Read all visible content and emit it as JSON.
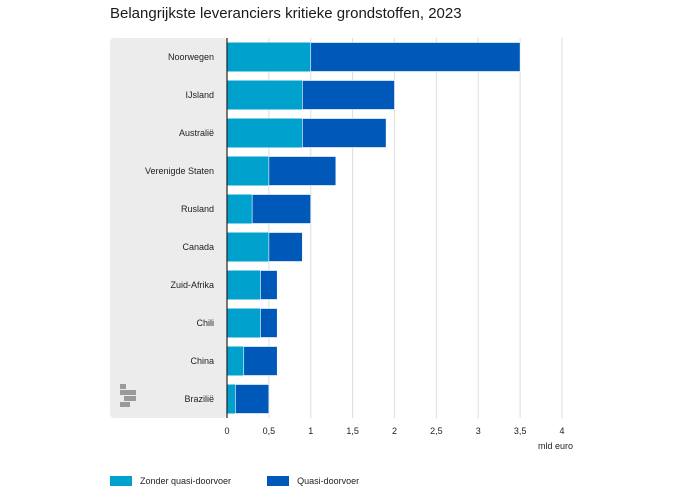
{
  "chart_data": {
    "type": "bar",
    "orientation": "horizontal",
    "stacked": true,
    "title": "Belangrijkste leveranciers kritieke grondstoffen, 2023",
    "xlabel": "mld euro",
    "ylabel": "",
    "xlim": [
      0,
      4
    ],
    "xticks": [
      0,
      0.5,
      1,
      1.5,
      2,
      2.5,
      3,
      3.5,
      4
    ],
    "xtick_labels": [
      "0",
      "0,5",
      "1",
      "1,5",
      "2",
      "2,5",
      "3",
      "3,5",
      "4"
    ],
    "grid": true,
    "legend_position": "bottom-left",
    "categories": [
      "Noorwegen",
      "IJsland",
      "Australië",
      "Verenigde Staten",
      "Rusland",
      "Canada",
      "Zuid-Afrika",
      "Chili",
      "China",
      "Brazilië"
    ],
    "series": [
      {
        "name": "Zonder quasi-doorvoer",
        "color": "#00a1cd",
        "values": [
          1.0,
          0.9,
          0.9,
          0.5,
          0.3,
          0.5,
          0.4,
          0.4,
          0.2,
          0.1
        ]
      },
      {
        "name": "Quasi-doorvoer",
        "color": "#0058b8",
        "values": [
          2.5,
          1.1,
          1.0,
          0.8,
          0.7,
          0.4,
          0.2,
          0.2,
          0.4,
          0.4
        ]
      }
    ],
    "colors": {
      "label_panel": "#ececec",
      "grid": "#dddddd",
      "axis": "#222222",
      "logo": "#9a9a9a"
    }
  },
  "logo_icon": "cbs-logo-icon"
}
